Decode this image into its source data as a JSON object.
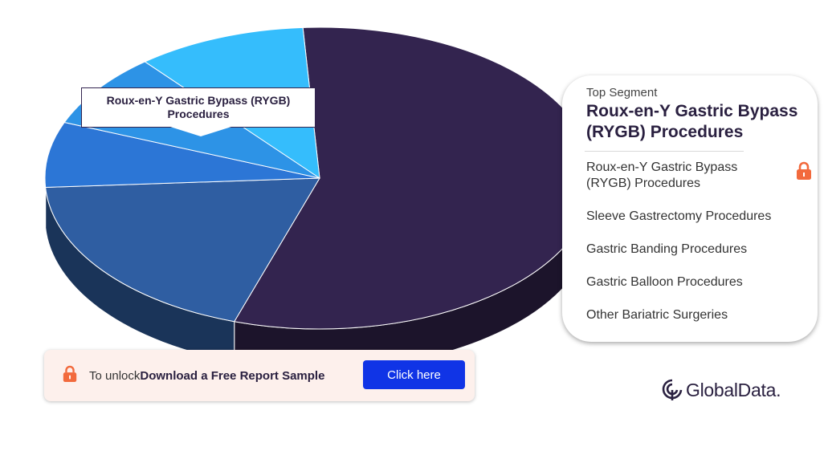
{
  "chart_data": {
    "type": "pie",
    "title": "",
    "slices": [
      {
        "label": "Roux-en-Y Gastric Bypass (RYGB) Procedures",
        "value": 56,
        "color": "#33244f"
      },
      {
        "label": "Sleeve Gastrectomy Procedures",
        "value": 19,
        "color": "#2f5ea2"
      },
      {
        "label": "Gastric Banding Procedures",
        "value": 7,
        "color": "#2c76d6"
      },
      {
        "label": "Gastric Balloon Procedures",
        "value": 8,
        "color": "#2d93e6"
      },
      {
        "label": "Other Bariatric Surgeries",
        "value": 10,
        "color": "#35bdfc"
      }
    ],
    "callout_label": "Roux-en-Y Gastric Bypass (RYGB) Procedures"
  },
  "panel": {
    "caption": "Top Segment",
    "title": "Roux-en-Y Gastric Bypass (RYGB) Procedures",
    "items": [
      {
        "label": "Roux-en-Y Gastric Bypass (RYGB) Procedures",
        "locked": true
      },
      {
        "label": "Sleeve Gastrectomy Procedures",
        "locked": false
      },
      {
        "label": "Gastric Banding Procedures",
        "locked": false
      },
      {
        "label": "Gastric Balloon Procedures",
        "locked": false
      },
      {
        "label": "Other Bariatric Surgeries",
        "locked": false
      }
    ]
  },
  "unlock": {
    "prefix": "To unlock",
    "strong": "Download a Free Report Sample",
    "button": "Click here",
    "icon": "lock-icon"
  },
  "brand": {
    "name": "GlobalData."
  },
  "colors": {
    "accent": "#1034e6",
    "lock": "#f26a3d",
    "dark": "#2a2040"
  }
}
